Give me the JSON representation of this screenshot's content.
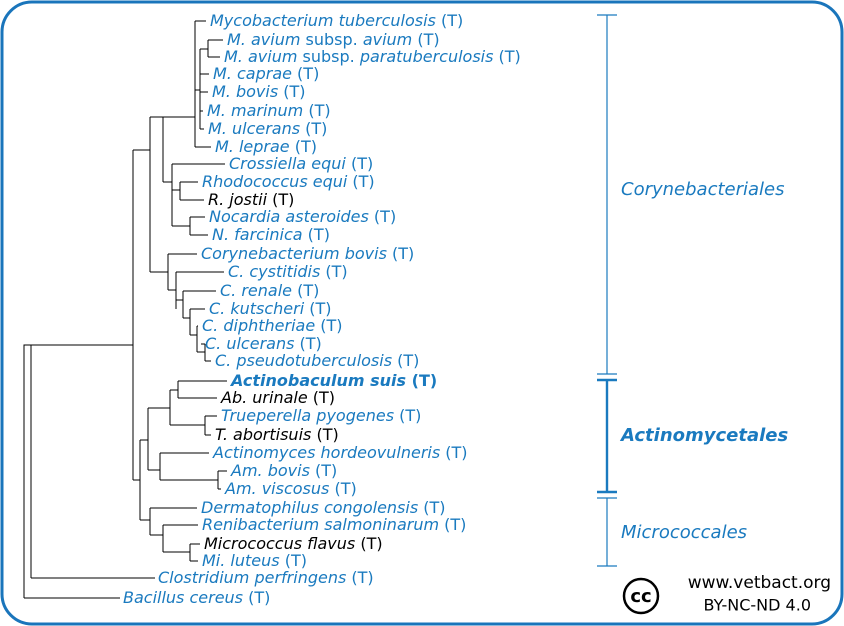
{
  "leaves": [
    {
      "segments": [
        "Mycobacterium tuberculosis",
        " (T)"
      ],
      "color": "#1a7abf"
    },
    {
      "segments": [
        "M. avium",
        " subsp. ",
        "avium",
        " (T)"
      ],
      "color": "#1a7abf"
    },
    {
      "segments": [
        "M. avium",
        " subsp. ",
        "paratuberculosis",
        " (T)"
      ],
      "color": "#1a7abf"
    },
    {
      "segments": [
        "M. caprae",
        " (T)"
      ],
      "color": "#1a7abf"
    },
    {
      "segments": [
        "M. bovis",
        " (T)"
      ],
      "color": "#1a7abf"
    },
    {
      "segments": [
        "M. marinum",
        " (T)"
      ],
      "color": "#1a7abf"
    },
    {
      "segments": [
        "M. ulcerans",
        " (T)"
      ],
      "color": "#1a7abf"
    },
    {
      "segments": [
        "M. leprae",
        " (T)"
      ],
      "color": "#1a7abf"
    },
    {
      "segments": [
        "Crossiella equi",
        " (T)"
      ],
      "color": "#1a7abf"
    },
    {
      "segments": [
        "Rhodococcus equi",
        " (T)"
      ],
      "color": "#1a7abf"
    },
    {
      "segments": [
        "R. jostii",
        " (T)"
      ],
      "color": "#000000"
    },
    {
      "segments": [
        "Nocardia asteroides",
        " (T)"
      ],
      "color": "#1a7abf"
    },
    {
      "segments": [
        "N. farcinica",
        " (T)"
      ],
      "color": "#1a7abf"
    },
    {
      "segments": [
        "Corynebacterium bovis",
        " (T)"
      ],
      "color": "#1a7abf"
    },
    {
      "segments": [
        "C. cystitidis",
        " (T)"
      ],
      "color": "#1a7abf"
    },
    {
      "segments": [
        "C. renale",
        " (T)"
      ],
      "color": "#1a7abf"
    },
    {
      "segments": [
        "C. kutscheri",
        " (T)"
      ],
      "color": "#1a7abf"
    },
    {
      "segments": [
        "C. diphtheriae",
        " (T)"
      ],
      "color": "#1a7abf"
    },
    {
      "segments": [
        "C. ulcerans",
        " (T)"
      ],
      "color": "#1a7abf"
    },
    {
      "segments": [
        "C. pseudotuberculosis",
        " (T)"
      ],
      "color": "#1a7abf"
    },
    {
      "segments": [
        "Actinobaculum suis",
        " (T)"
      ],
      "color": "#1a7abf",
      "bold": true
    },
    {
      "segments": [
        "Ab. urinale",
        " (T)"
      ],
      "color": "#000000"
    },
    {
      "segments": [
        "Trueperella pyogenes",
        " (T)"
      ],
      "color": "#1a7abf"
    },
    {
      "segments": [
        "T. abortisuis",
        " (T)"
      ],
      "color": "#000000"
    },
    {
      "segments": [
        "Actinomyces hordeovulneris",
        " (T)"
      ],
      "color": "#1a7abf"
    },
    {
      "segments": [
        "Am. bovis",
        " (T)"
      ],
      "color": "#1a7abf"
    },
    {
      "segments": [
        "Am. viscosus",
        " (T)"
      ],
      "color": "#1a7abf"
    },
    {
      "segments": [
        "Dermatophilus congolensis",
        " (T)"
      ],
      "color": "#1a7abf"
    },
    {
      "segments": [
        "Renibacterium salmoninarum",
        " (T)"
      ],
      "color": "#1a7abf"
    },
    {
      "segments": [
        "Micrococcus flavus",
        " (T)"
      ],
      "color": "#000000"
    },
    {
      "segments": [
        "Mi. luteus",
        " (T)"
      ],
      "color": "#1a7abf"
    },
    {
      "segments": [
        "Clostridium perfringens",
        " (T)"
      ],
      "color": "#1a7abf"
    },
    {
      "segments": [
        "Bacillus cereus",
        " (T)"
      ],
      "color": "#1a7abf"
    }
  ],
  "groups": [
    {
      "label": "Corynebacteriales"
    },
    {
      "label": "Actinomycetales",
      "bold": true
    },
    {
      "label": "Micrococcales"
    }
  ],
  "footer": {
    "icon": "cc",
    "site": "www.vetbact.org",
    "license": "BY-NC-ND 4.0"
  }
}
